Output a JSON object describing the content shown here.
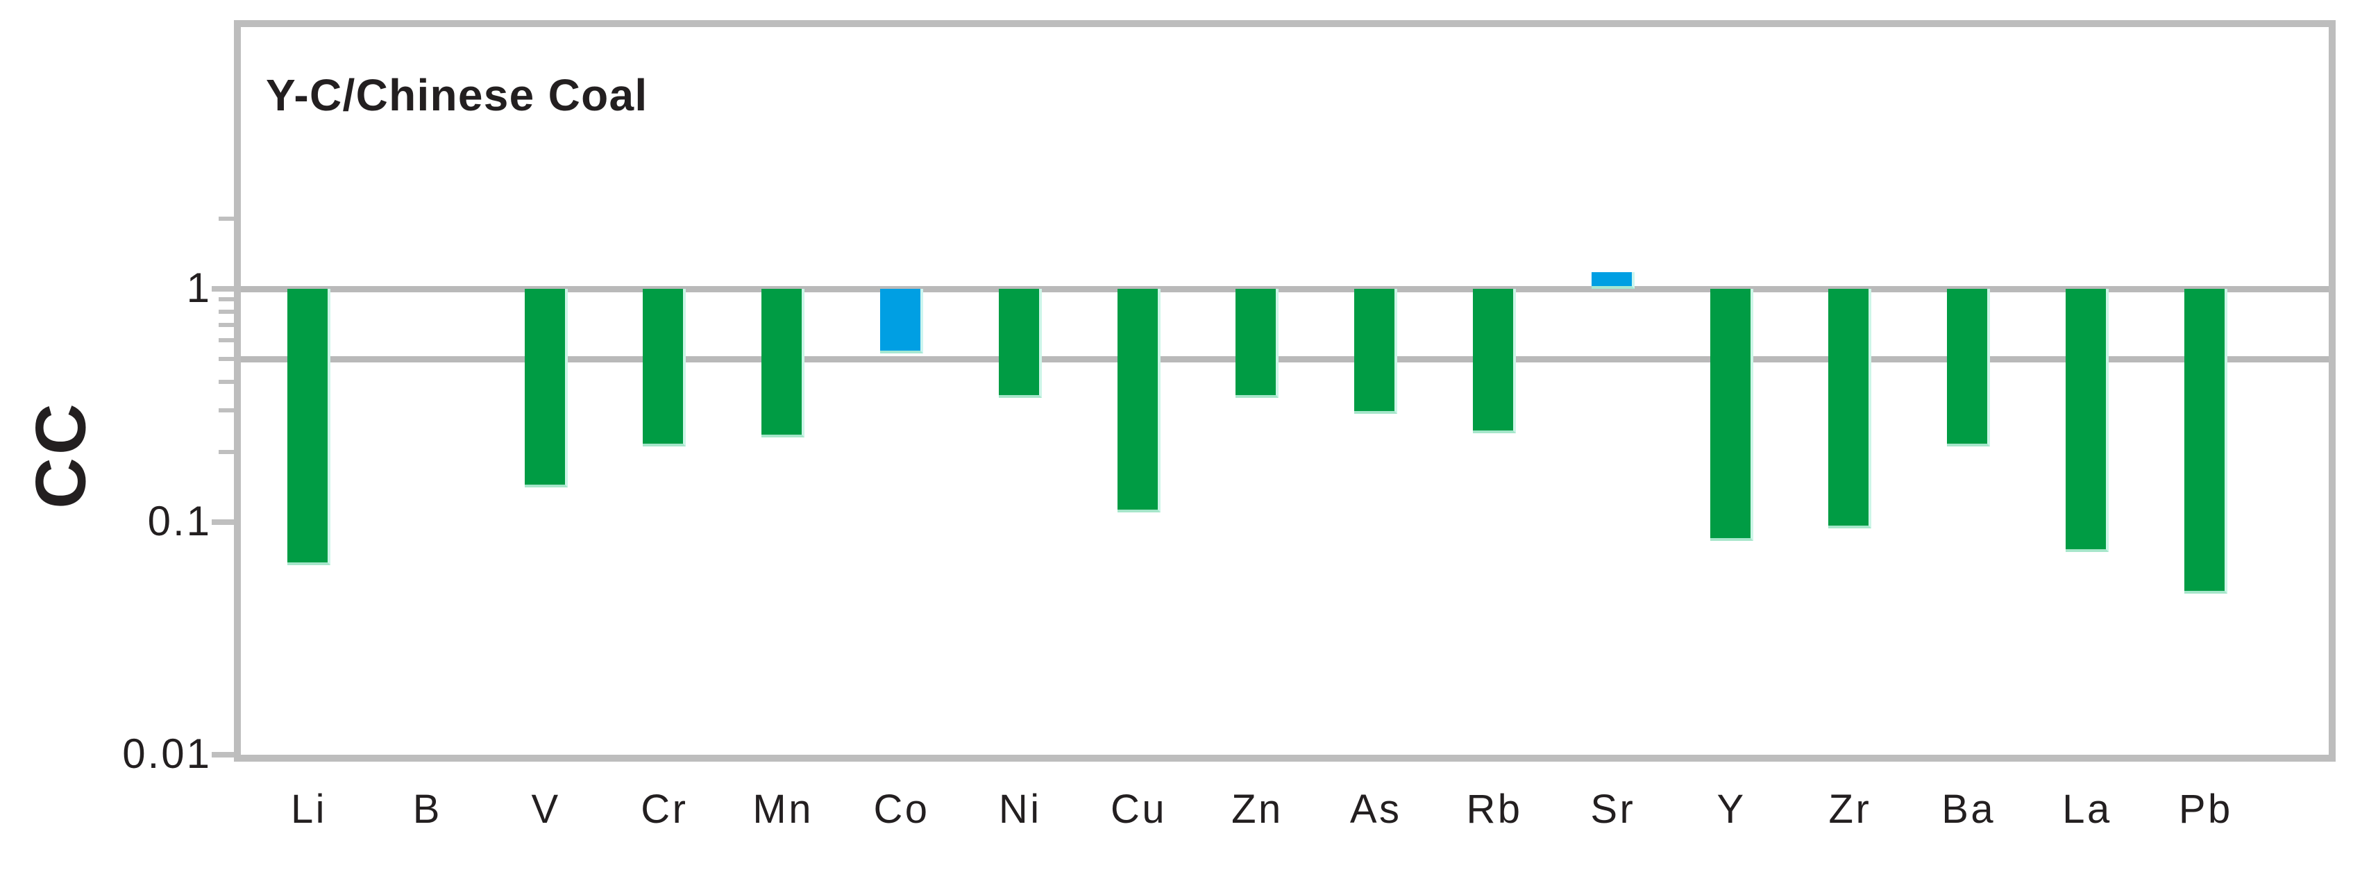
{
  "chart_data": {
    "type": "bar",
    "title": "Y-C/Chinese Coal",
    "xlabel": "",
    "ylabel": "CC",
    "yscale": "log",
    "ylim": [
      0.01,
      13.3
    ],
    "baseline": 1,
    "grid": "horizontal",
    "legend": "none",
    "gridline_values": [
      1,
      0.5
    ],
    "ytick_values": [
      1,
      0.1,
      0.01
    ],
    "ytick_labels": [
      "1",
      "0.1",
      "0.01"
    ],
    "minor_tick_values": [
      2,
      0.9,
      0.8,
      0.7,
      0.6,
      0.5,
      0.4,
      0.3,
      0.2
    ],
    "categories": [
      "Li",
      "B",
      "V",
      "Cr",
      "Mn",
      "Co",
      "Ni",
      "Cu",
      "Zn",
      "As",
      "Rb",
      "Sr",
      "Y",
      "Zr",
      "Ba",
      "La",
      "Pb"
    ],
    "values": [
      0.065,
      null,
      0.14,
      0.21,
      0.23,
      0.53,
      0.34,
      0.11,
      0.34,
      0.29,
      0.24,
      1.18,
      0.083,
      0.094,
      0.21,
      0.074,
      0.049
    ],
    "point_colors": [
      "green",
      "green",
      "green",
      "green",
      "green",
      "blue",
      "green",
      "green",
      "green",
      "green",
      "green",
      "blue",
      "green",
      "green",
      "green",
      "green",
      "green"
    ],
    "colors": {
      "green": "#009C44",
      "blue": "#009FE3",
      "grid": "#B9B9B9",
      "frame": "#BDBDBD",
      "text": "#231F20"
    }
  }
}
